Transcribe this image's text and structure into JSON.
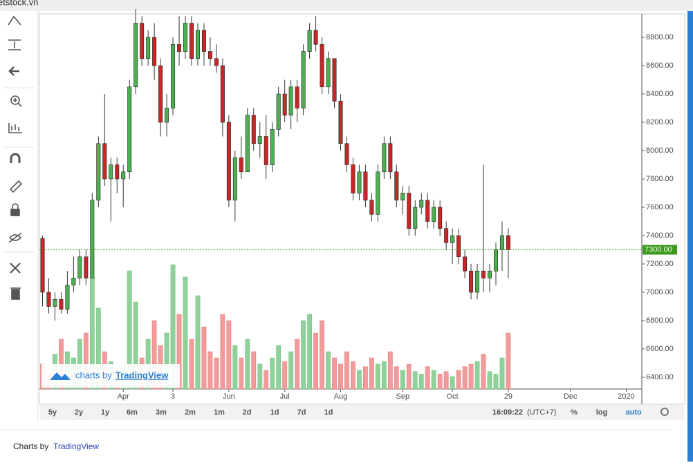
{
  "site": "etstock.vn",
  "chart_data": {
    "type": "candlestick",
    "ylim": [
      6317,
      8966
    ],
    "xlim": [
      -0.5,
      96.5
    ],
    "vlim": [
      0,
      100
    ],
    "yticks": [
      {
        "value": 6400,
        "label": "6400.00"
      },
      {
        "value": 6600,
        "label": "6600.00"
      },
      {
        "value": 6800,
        "label": "6800.00"
      },
      {
        "value": 7000,
        "label": "7000.00"
      },
      {
        "value": 7200,
        "label": "7200.00"
      },
      {
        "value": 7400,
        "label": "7400.00"
      },
      {
        "value": 7600,
        "label": "7600.00"
      },
      {
        "value": 7800,
        "label": "7800.00"
      },
      {
        "value": 8000,
        "label": "8000.00"
      },
      {
        "value": 8200,
        "label": "8200.00"
      },
      {
        "value": 8400,
        "label": "8400.00"
      },
      {
        "value": 8600,
        "label": "8600.00"
      },
      {
        "value": 8800,
        "label": "8800.00"
      }
    ],
    "xticks": [
      {
        "value": 13,
        "label": "Apr"
      },
      {
        "value": 21,
        "label": "3"
      },
      {
        "value": 30,
        "label": "Jun"
      },
      {
        "value": 39,
        "label": "Jul"
      },
      {
        "value": 48,
        "label": "Aug"
      },
      {
        "value": 58,
        "label": "Sep"
      },
      {
        "value": 66,
        "label": "Oct"
      },
      {
        "value": 75,
        "label": "29"
      },
      {
        "value": 85,
        "label": "Dec"
      },
      {
        "value": 94,
        "label": "2020"
      }
    ],
    "up_color": "#4caf50",
    "down_color": "#c62828",
    "up_volume_color": "#8fd19a",
    "down_volume_color": "#f29b9b",
    "last_price": {
      "value": 7300,
      "label": "7300.00"
    },
    "ohlc": [
      [
        7380,
        7400,
        6900,
        7000
      ],
      [
        7000,
        7100,
        6850,
        6900
      ],
      [
        6900,
        7000,
        6800,
        6950
      ],
      [
        6950,
        7000,
        6850,
        6880
      ],
      [
        6880,
        7150,
        6850,
        7050
      ],
      [
        7050,
        7250,
        7000,
        7100
      ],
      [
        7100,
        7300,
        7050,
        7250
      ],
      [
        7250,
        7300,
        7050,
        7100
      ],
      [
        7100,
        7700,
        7100,
        7650
      ],
      [
        7650,
        8100,
        7600,
        8050
      ],
      [
        8050,
        8400,
        7750,
        7800
      ],
      [
        7800,
        7950,
        7500,
        7900
      ],
      [
        7900,
        7950,
        7700,
        7800
      ],
      [
        7800,
        7900,
        7600,
        7850
      ],
      [
        7850,
        8500,
        7800,
        8450
      ],
      [
        8450,
        9000,
        8400,
        8900
      ],
      [
        8900,
        8950,
        8600,
        8650
      ],
      [
        8650,
        8850,
        8600,
        8800
      ],
      [
        8800,
        8900,
        8500,
        8600
      ],
      [
        8600,
        8650,
        8100,
        8200
      ],
      [
        8200,
        8400,
        8100,
        8300
      ],
      [
        8300,
        8800,
        8250,
        8750
      ],
      [
        8750,
        8950,
        8600,
        8700
      ],
      [
        8700,
        8950,
        8650,
        8900
      ],
      [
        8900,
        8950,
        8600,
        8650
      ],
      [
        8650,
        8900,
        8600,
        8850
      ],
      [
        8850,
        8900,
        8600,
        8700
      ],
      [
        8700,
        8800,
        8600,
        8650
      ],
      [
        8650,
        8750,
        8550,
        8600
      ],
      [
        8600,
        8650,
        8100,
        8200
      ],
      [
        8200,
        8250,
        7600,
        7650
      ],
      [
        7650,
        8000,
        7500,
        7950
      ],
      [
        7950,
        8100,
        7800,
        7850
      ],
      [
        7850,
        8300,
        7850,
        8250
      ],
      [
        8250,
        8300,
        8000,
        8050
      ],
      [
        8050,
        8200,
        7950,
        8100
      ],
      [
        8100,
        8250,
        7800,
        7900
      ],
      [
        7900,
        8200,
        7850,
        8150
      ],
      [
        8150,
        8450,
        8100,
        8400
      ],
      [
        8400,
        8500,
        8200,
        8250
      ],
      [
        8250,
        8500,
        8150,
        8450
      ],
      [
        8450,
        8500,
        8200,
        8300
      ],
      [
        8300,
        8750,
        8250,
        8700
      ],
      [
        8700,
        8900,
        8650,
        8850
      ],
      [
        8850,
        8950,
        8700,
        8750
      ],
      [
        8750,
        8800,
        8400,
        8450
      ],
      [
        8450,
        8700,
        8400,
        8650
      ],
      [
        8650,
        8650,
        8300,
        8350
      ],
      [
        8350,
        8400,
        8000,
        8050
      ],
      [
        8050,
        8100,
        7850,
        7900
      ],
      [
        7900,
        7950,
        7650,
        7700
      ],
      [
        7700,
        7900,
        7650,
        7850
      ],
      [
        7850,
        7900,
        7600,
        7650
      ],
      [
        7650,
        7700,
        7500,
        7550
      ],
      [
        7550,
        7900,
        7500,
        7850
      ],
      [
        7850,
        8100,
        7800,
        8050
      ],
      [
        8050,
        8100,
        7800,
        7850
      ],
      [
        7850,
        7900,
        7600,
        7650
      ],
      [
        7650,
        7750,
        7550,
        7700
      ],
      [
        7700,
        7750,
        7400,
        7450
      ],
      [
        7450,
        7650,
        7400,
        7600
      ],
      [
        7600,
        7700,
        7550,
        7650
      ],
      [
        7650,
        7700,
        7450,
        7500
      ],
      [
        7500,
        7650,
        7450,
        7600
      ],
      [
        7600,
        7650,
        7400,
        7450
      ],
      [
        7450,
        7500,
        7300,
        7350
      ],
      [
        7350,
        7450,
        7200,
        7400
      ],
      [
        7400,
        7450,
        7200,
        7250
      ],
      [
        7250,
        7300,
        7100,
        7150
      ],
      [
        7150,
        7200,
        6950,
        7000
      ],
      [
        7000,
        7200,
        6950,
        7150
      ],
      [
        7150,
        7900,
        7000,
        7100
      ],
      [
        7100,
        7200,
        7000,
        7150
      ],
      [
        7150,
        7350,
        7050,
        7300
      ],
      [
        7300,
        7500,
        7150,
        7400
      ],
      [
        7400,
        7450,
        7100,
        7300
      ]
    ],
    "volume": [
      20,
      12,
      28,
      40,
      30,
      25,
      40,
      45,
      90,
      65,
      30,
      22,
      15,
      18,
      95,
      70,
      25,
      40,
      55,
      35,
      45,
      100,
      60,
      90,
      40,
      75,
      50,
      30,
      25,
      60,
      55,
      35,
      25,
      40,
      30,
      20,
      15,
      25,
      35,
      22,
      30,
      40,
      55,
      60,
      45,
      55,
      30,
      25,
      20,
      30,
      22,
      15,
      18,
      25,
      20,
      22,
      30,
      18,
      15,
      20,
      14,
      12,
      18,
      15,
      12,
      14,
      10,
      15,
      18,
      20,
      22,
      28,
      14,
      12,
      25,
      45
    ]
  },
  "watermark": {
    "prefix": "charts by",
    "brand": "TradingView"
  },
  "timeframes": [
    "5y",
    "2y",
    "1y",
    "6m",
    "3m",
    "2m",
    "1m",
    "2d",
    "1d",
    "7d",
    "1d"
  ],
  "clock": {
    "time": "16:09:22",
    "zone": "(UTC+7)"
  },
  "scale_buttons": [
    "%",
    "log",
    "auto"
  ],
  "footer": {
    "prefix": "Charts by",
    "brand": "TradingView"
  }
}
